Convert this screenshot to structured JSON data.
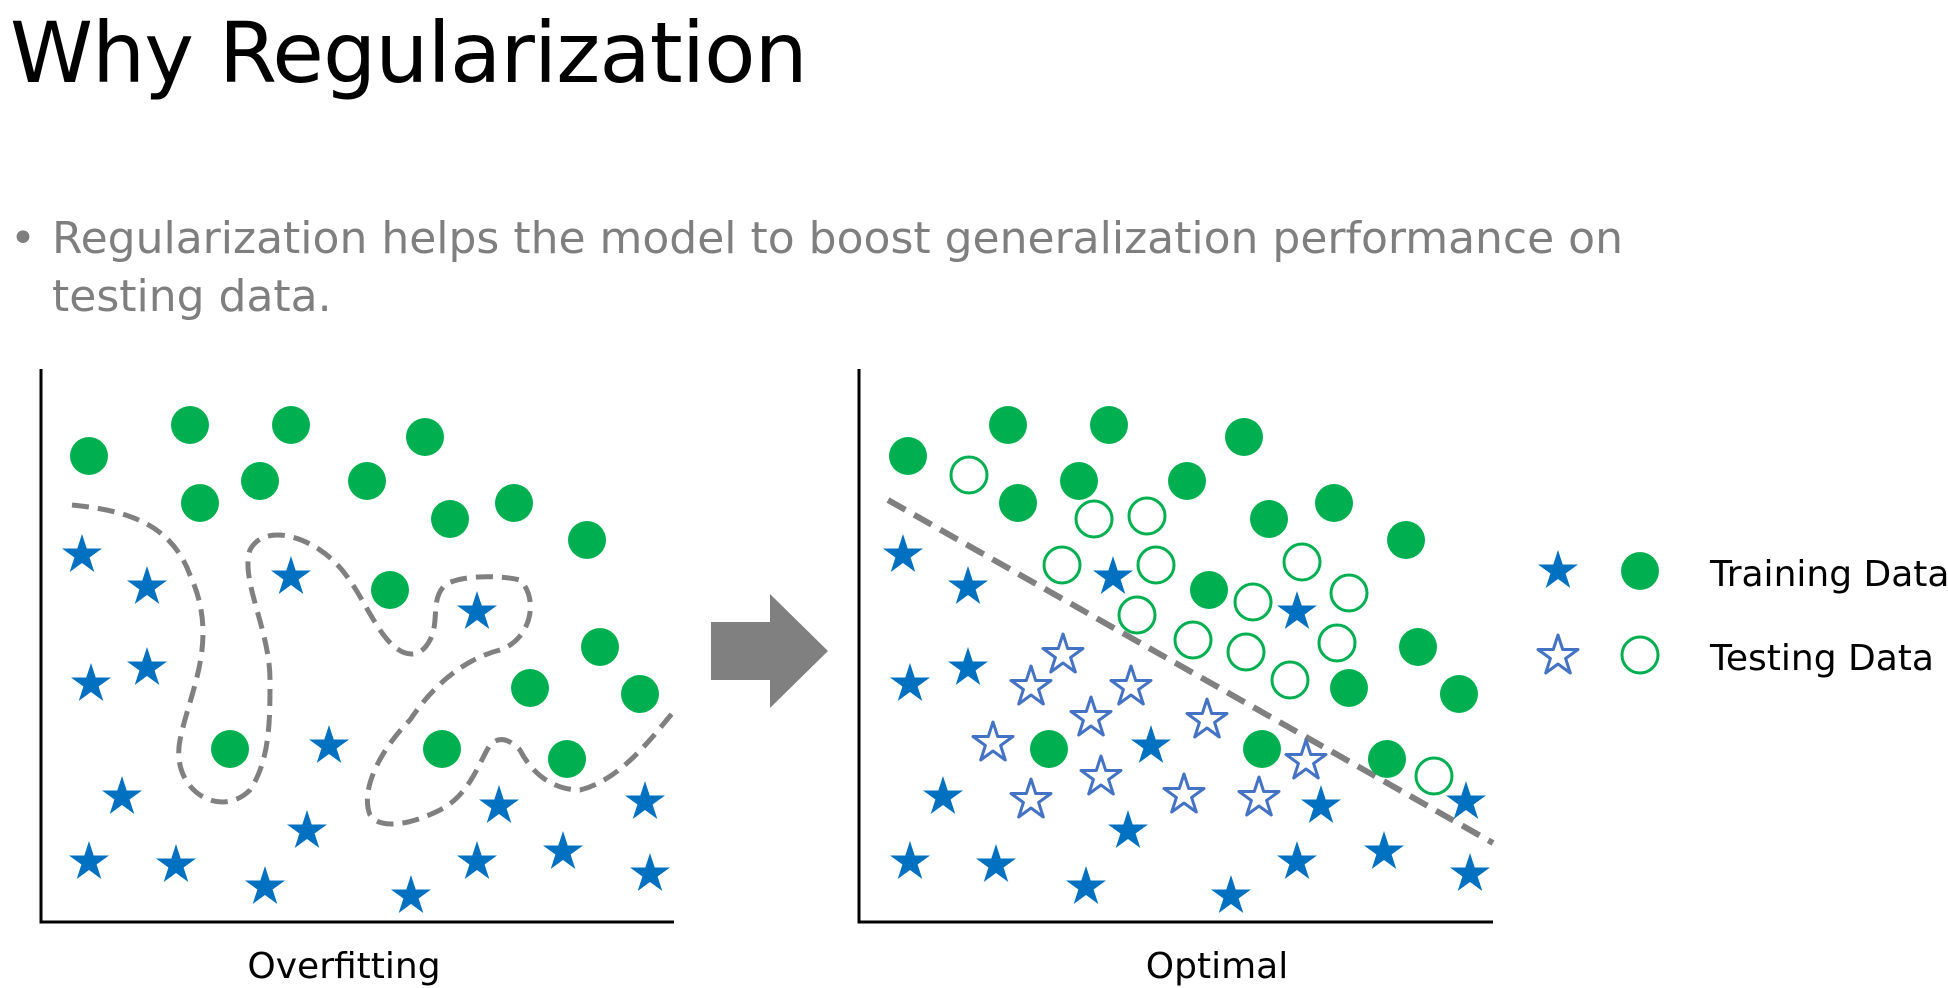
{
  "slide": {
    "title": "Why Regularization",
    "bullet": "Regularization helps the model to boost generalization performance on testing data."
  },
  "panels": {
    "left": {
      "caption": "Overfitting"
    },
    "right": {
      "caption": "Optimal"
    }
  },
  "legend": {
    "training_label": "Training Data",
    "testing_label": "Testing Data"
  },
  "colors": {
    "training_green": "#00b050",
    "training_blue": "#0070c0",
    "testing_green_outline": "#00b050",
    "testing_blue_outline": "#4472c4",
    "boundary": "#808080",
    "arrow": "#808080",
    "axis": "#000000"
  },
  "icons": {
    "bullet": "bullet-dot",
    "arrow": "right-arrow-icon",
    "star": "star-icon",
    "circle": "circle-icon"
  }
}
